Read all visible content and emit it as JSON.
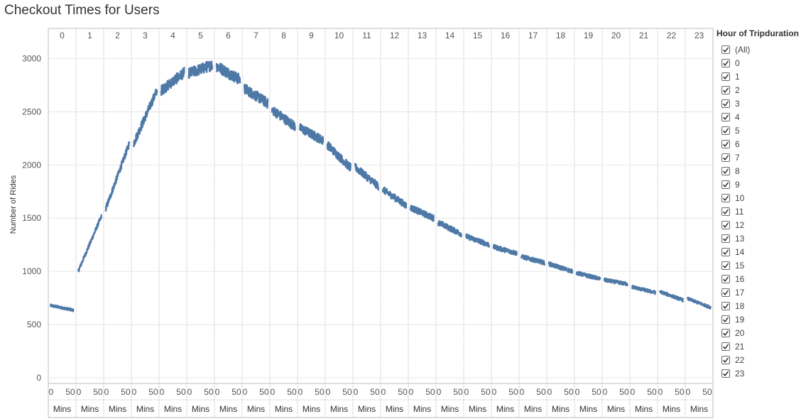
{
  "title": "Checkout Times for Users",
  "legend": {
    "title": "Hour of Tripduration",
    "items": [
      "(All)",
      "0",
      "1",
      "2",
      "3",
      "4",
      "5",
      "6",
      "7",
      "8",
      "9",
      "10",
      "11",
      "12",
      "13",
      "14",
      "15",
      "16",
      "17",
      "18",
      "19",
      "20",
      "21",
      "22",
      "23"
    ],
    "checked": true
  },
  "colors": {
    "line": "#4e79a7",
    "grid": "#e6e6e6",
    "divider": "#bdbdbd"
  },
  "chart_data": {
    "type": "line",
    "title": "Checkout Times for Users",
    "ylabel": "Number of Rides",
    "ylim": [
      0,
      3150
    ],
    "yticks": [
      0,
      500,
      1000,
      1500,
      2000,
      2500,
      3000
    ],
    "panel_label": "Mins",
    "x_ticks": [
      "0",
      "50"
    ],
    "xlim_per_panel": [
      0,
      59
    ],
    "panels": [
      "0",
      "1",
      "2",
      "3",
      "4",
      "5",
      "6",
      "7",
      "8",
      "9",
      "10",
      "11",
      "12",
      "13",
      "14",
      "15",
      "16",
      "17",
      "18",
      "19",
      "20",
      "21",
      "22",
      "23"
    ],
    "series": [
      {
        "start": [
          680,
          1000,
          1590,
          2200,
          2700,
          2860,
          2930,
          2720,
          2520,
          2350,
          2190,
          1980,
          1770,
          1600,
          1460,
          1330,
          1230,
          1140,
          1070,
          985,
          920,
          855,
          810,
          745
        ],
        "end": [
          635,
          1520,
          2200,
          2700,
          2870,
          2940,
          2800,
          2580,
          2360,
          2230,
          1970,
          1800,
          1620,
          1500,
          1350,
          1250,
          1170,
          1080,
          1000,
          930,
          880,
          800,
          730,
          660
        ]
      }
    ],
    "grid": true,
    "legend_position": "right"
  }
}
